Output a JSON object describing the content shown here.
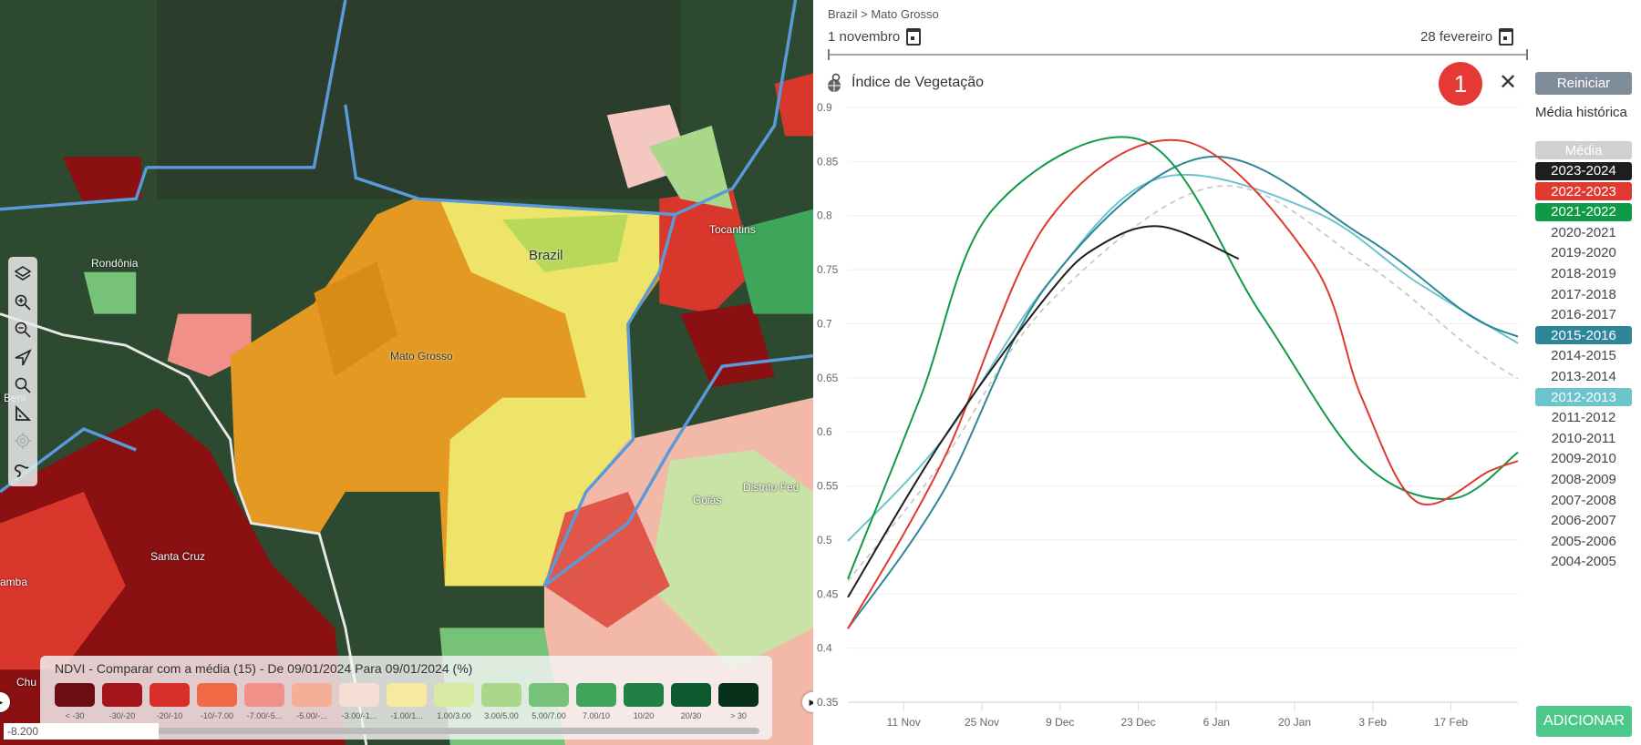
{
  "map": {
    "labels": {
      "rondonia": "Rondônia",
      "brazil": "Brazil",
      "mato_grosso": "Mato Grosso",
      "tocantins": "Tocantins",
      "santa_cruz": "Santa Cruz",
      "goias": "Goiás",
      "distrito_federal": "Distrito Fed",
      "beni": "El Beni",
      "amba": "amba",
      "chu": "Chu"
    },
    "scale_readout": "-8.200",
    "legend": {
      "title": "NDVI - Comparar com a média (15) - De 09/01/2024 Para 09/01/2024 (%)",
      "items": [
        {
          "label": "< -30",
          "color": "#6b0d12"
        },
        {
          "label": "-30/-20",
          "color": "#a3141b"
        },
        {
          "label": "-20/-10",
          "color": "#d92f2a"
        },
        {
          "label": "-10/-7.00",
          "color": "#ef6a45"
        },
        {
          "label": "-7.00/-5...",
          "color": "#f09089"
        },
        {
          "label": "-5.00/-...",
          "color": "#f4b096"
        },
        {
          "label": "-3.00/-1...",
          "color": "#f6ddd3"
        },
        {
          "label": "-1.00/1...",
          "color": "#f7eaa0"
        },
        {
          "label": "1.00/3.00",
          "color": "#d8eaa4"
        },
        {
          "label": "3.00/5.00",
          "color": "#a9d88a"
        },
        {
          "label": "5.00/7.00",
          "color": "#75c278"
        },
        {
          "label": "7.00/10",
          "color": "#3fa55b"
        },
        {
          "label": "10/20",
          "color": "#247f45"
        },
        {
          "label": "20/30",
          "color": "#0c5a2e"
        },
        {
          "label": "> 30",
          "color": "#06301a"
        }
      ]
    }
  },
  "panel": {
    "breadcrumb": "Brazil > Mato Grosso",
    "start_date": "1 novembro",
    "end_date": "28 fevereiro",
    "chart_title": "Índice de Vegetação",
    "badge": "1",
    "close": "✕",
    "reset_label": "Reiniciar",
    "history_label": "Média histórica",
    "add_label": "ADICIONAR",
    "years": [
      {
        "label": "Média",
        "bg": "#d0d0d0",
        "fg": "#fff"
      },
      {
        "label": "2023-2024",
        "bg": "#1e1e1e",
        "fg": "#fff"
      },
      {
        "label": "2022-2023",
        "bg": "#e0392f",
        "fg": "#fff"
      },
      {
        "label": "2021-2022",
        "bg": "#0f9a47",
        "fg": "#fff"
      },
      {
        "label": "2020-2021"
      },
      {
        "label": "2019-2020"
      },
      {
        "label": "2018-2019"
      },
      {
        "label": "2017-2018"
      },
      {
        "label": "2016-2017"
      },
      {
        "label": "2015-2016",
        "bg": "#2e8797",
        "fg": "#fff"
      },
      {
        "label": "2014-2015"
      },
      {
        "label": "2013-2014"
      },
      {
        "label": "2012-2013",
        "bg": "#6cc4cc",
        "fg": "#fff"
      },
      {
        "label": "2011-2012"
      },
      {
        "label": "2010-2011"
      },
      {
        "label": "2009-2010"
      },
      {
        "label": "2008-2009"
      },
      {
        "label": "2007-2008"
      },
      {
        "label": "2006-2007"
      },
      {
        "label": "2005-2006"
      },
      {
        "label": "2004-2005"
      }
    ]
  },
  "chart_data": {
    "type": "line",
    "title": "Índice de Vegetação",
    "xlabel": "",
    "ylabel": "",
    "x_unit": "days since 1 Nov",
    "xlim": [
      0,
      120
    ],
    "ylim": [
      0.35,
      0.9
    ],
    "yticks": [
      0.9,
      0.85,
      0.8,
      0.75,
      0.7,
      0.65,
      0.6,
      0.55,
      0.5,
      0.45,
      0.4,
      0.35
    ],
    "ytick_labels": [
      "0.9",
      "0.85",
      "0.8",
      "0.75",
      "0.7",
      "0.65",
      "0.6",
      "0.55",
      "0.5",
      "0.45",
      "0.4",
      "0.35"
    ],
    "xticks": [
      10,
      24,
      38,
      52,
      66,
      80,
      94,
      108
    ],
    "xtick_labels": [
      "11 Nov",
      "25 Nov",
      "9 Dec",
      "23 Dec",
      "6 Jan",
      "20 Jan",
      "3 Feb",
      "17 Feb"
    ],
    "grid": true,
    "series": [
      {
        "name": "Média",
        "color": "#c4c4c4",
        "dashed": true,
        "points": [
          [
            0,
            0.462
          ],
          [
            17,
            0.573
          ],
          [
            36,
            0.719
          ],
          [
            66,
            0.827
          ],
          [
            92,
            0.758
          ],
          [
            111,
            0.68
          ],
          [
            120,
            0.649
          ]
        ]
      },
      {
        "name": "2012-2013",
        "color": "#6cc4cc",
        "points": [
          [
            0,
            0.499
          ],
          [
            17,
            0.593
          ],
          [
            36,
            0.738
          ],
          [
            56,
            0.835
          ],
          [
            83,
            0.805
          ],
          [
            102,
            0.738
          ],
          [
            120,
            0.682
          ]
        ]
      },
      {
        "name": "2015-2016",
        "color": "#2e8797",
        "points": [
          [
            0,
            0.418
          ],
          [
            17,
            0.544
          ],
          [
            36,
            0.738
          ],
          [
            64,
            0.854
          ],
          [
            92,
            0.782
          ],
          [
            111,
            0.709
          ],
          [
            120,
            0.688
          ]
        ]
      },
      {
        "name": "2021-2022",
        "color": "#0f9a47",
        "points": [
          [
            0,
            0.464
          ],
          [
            13,
            0.632
          ],
          [
            26,
            0.806
          ],
          [
            53,
            0.869
          ],
          [
            74,
            0.709
          ],
          [
            92,
            0.573
          ],
          [
            108,
            0.538
          ],
          [
            120,
            0.581
          ]
        ]
      },
      {
        "name": "2022-2023",
        "color": "#e0392f",
        "points": [
          [
            0,
            0.418
          ],
          [
            17,
            0.573
          ],
          [
            36,
            0.796
          ],
          [
            60,
            0.869
          ],
          [
            83,
            0.758
          ],
          [
            92,
            0.632
          ],
          [
            102,
            0.535
          ],
          [
            115,
            0.564
          ],
          [
            120,
            0.573
          ]
        ]
      },
      {
        "name": "2023-2024",
        "color": "#1e1e1e",
        "points": [
          [
            0,
            0.447
          ],
          [
            17,
            0.593
          ],
          [
            36,
            0.728
          ],
          [
            45,
            0.772
          ],
          [
            56,
            0.79
          ],
          [
            70,
            0.76
          ]
        ]
      }
    ]
  }
}
